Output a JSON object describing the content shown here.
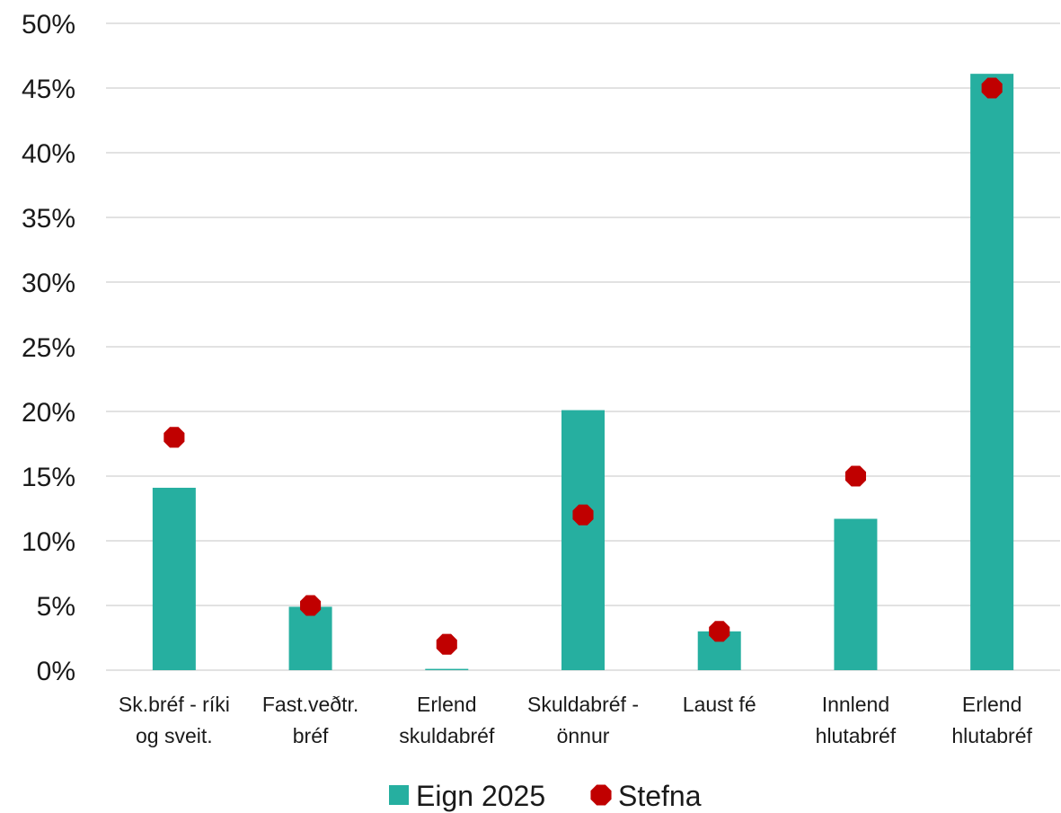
{
  "chart_data": {
    "type": "bar",
    "categories": [
      [
        "Sk.bréf - ríki",
        "og sveit."
      ],
      [
        "Fast.veðtr.",
        "bréf"
      ],
      [
        "Erlend",
        "skuldabréf"
      ],
      [
        "Skuldabréf -",
        "önnur"
      ],
      [
        "Laust fé"
      ],
      [
        "Innlend",
        "hlutabréf"
      ],
      [
        "Erlend",
        "hlutabréf"
      ]
    ],
    "series": [
      {
        "name": "Eign 2025",
        "type": "bar",
        "color": "#26AFA0",
        "values": [
          14.1,
          4.9,
          0.1,
          20.1,
          3.0,
          11.7,
          46.1
        ]
      },
      {
        "name": "Stefna",
        "type": "marker",
        "color": "#C00000",
        "values": [
          18,
          5,
          2,
          12,
          3,
          15,
          45
        ]
      }
    ],
    "ylim": [
      0,
      50
    ],
    "yticks": [
      0,
      5,
      10,
      15,
      20,
      25,
      30,
      35,
      40,
      45,
      50
    ],
    "ytick_labels": [
      "0%",
      "5%",
      "10%",
      "15%",
      "20%",
      "25%",
      "30%",
      "35%",
      "40%",
      "45%",
      "50%"
    ],
    "grid": true,
    "legend_position": "bottom"
  }
}
